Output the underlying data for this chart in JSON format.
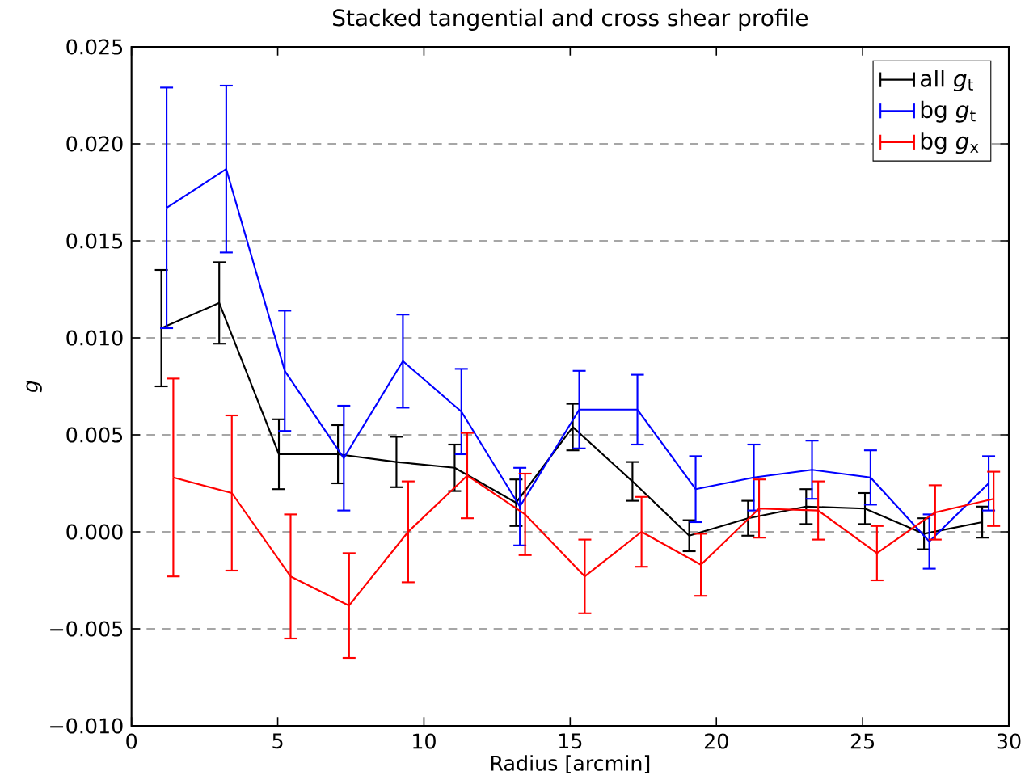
{
  "chart_data": {
    "type": "line",
    "title": "Stacked tangential and cross shear profile",
    "xlabel": "Radius [arcmin]",
    "ylabel": "*g*",
    "series": [
      {
        "name": "all *g*$_{t}$",
        "color": "#000000",
        "x": [
          1.02,
          3.0,
          5.04,
          7.06,
          9.06,
          11.05,
          13.15,
          15.09,
          17.13,
          19.07,
          21.08,
          23.07,
          25.08,
          27.1,
          29.09
        ],
        "values": [
          0.0105,
          0.0118,
          0.004,
          0.004,
          0.0036,
          0.0033,
          0.0015,
          0.0054,
          0.0026,
          -0.0002,
          0.0007,
          0.0013,
          0.0012,
          -0.0001,
          0.0005
        ],
        "errors": [
          0.003,
          0.0021,
          0.0018,
          0.0015,
          0.0013,
          0.0012,
          0.0012,
          0.0012,
          0.001,
          0.0008,
          0.0009,
          0.0009,
          0.0008,
          0.0008,
          0.0008
        ]
      },
      {
        "name": "bg *g*$_{t}$",
        "color": "#0000ff",
        "x": [
          1.2,
          3.24,
          5.24,
          7.26,
          9.28,
          11.28,
          13.28,
          15.31,
          17.3,
          19.29,
          21.28,
          23.27,
          25.27,
          27.28,
          29.31
        ],
        "values": [
          0.0167,
          0.0187,
          0.0083,
          0.0038,
          0.0088,
          0.0062,
          0.0013,
          0.0063,
          0.0063,
          0.0022,
          0.0028,
          0.0032,
          0.0028,
          -0.0005,
          0.0025
        ],
        "errors": [
          0.0062,
          0.0043,
          0.0031,
          0.0027,
          0.0024,
          0.0022,
          0.002,
          0.002,
          0.0018,
          0.0017,
          0.0017,
          0.0015,
          0.0014,
          0.0014,
          0.0014
        ]
      },
      {
        "name": "bg *g*$_{x}$",
        "color": "#ff0000",
        "x": [
          1.43,
          3.43,
          5.44,
          7.44,
          9.46,
          11.48,
          13.46,
          15.5,
          17.44,
          19.47,
          21.46,
          23.48,
          25.49,
          27.48,
          29.48
        ],
        "values": [
          0.0028,
          0.002,
          -0.0023,
          -0.0038,
          0.0,
          0.0029,
          0.0009,
          -0.0023,
          0.0,
          -0.0017,
          0.0012,
          0.0011,
          -0.0011,
          0.001,
          0.0017
        ],
        "errors": [
          0.0051,
          0.004,
          0.0032,
          0.0027,
          0.0026,
          0.0022,
          0.0021,
          0.0019,
          0.0018,
          0.0016,
          0.0015,
          0.0015,
          0.0014,
          0.0014,
          0.0014
        ]
      }
    ],
    "xlim": [
      0,
      30
    ],
    "xticks": [
      0,
      5,
      10,
      15,
      20,
      25,
      30
    ],
    "ylim": [
      -0.01,
      0.025
    ],
    "yticks": [
      {
        "value": -0.01,
        "label": "−0.010"
      },
      {
        "value": -0.005,
        "label": "−0.005"
      },
      {
        "value": 0.0,
        "label": "0.000"
      },
      {
        "value": 0.005,
        "label": "0.005"
      },
      {
        "value": 0.01,
        "label": "0.010"
      },
      {
        "value": 0.015,
        "label": "0.015"
      },
      {
        "value": 0.02,
        "label": "0.020"
      },
      {
        "value": 0.025,
        "label": "0.025"
      }
    ],
    "grid": "y",
    "legend": "top right",
    "marker": "none",
    "line_style": "solid"
  }
}
